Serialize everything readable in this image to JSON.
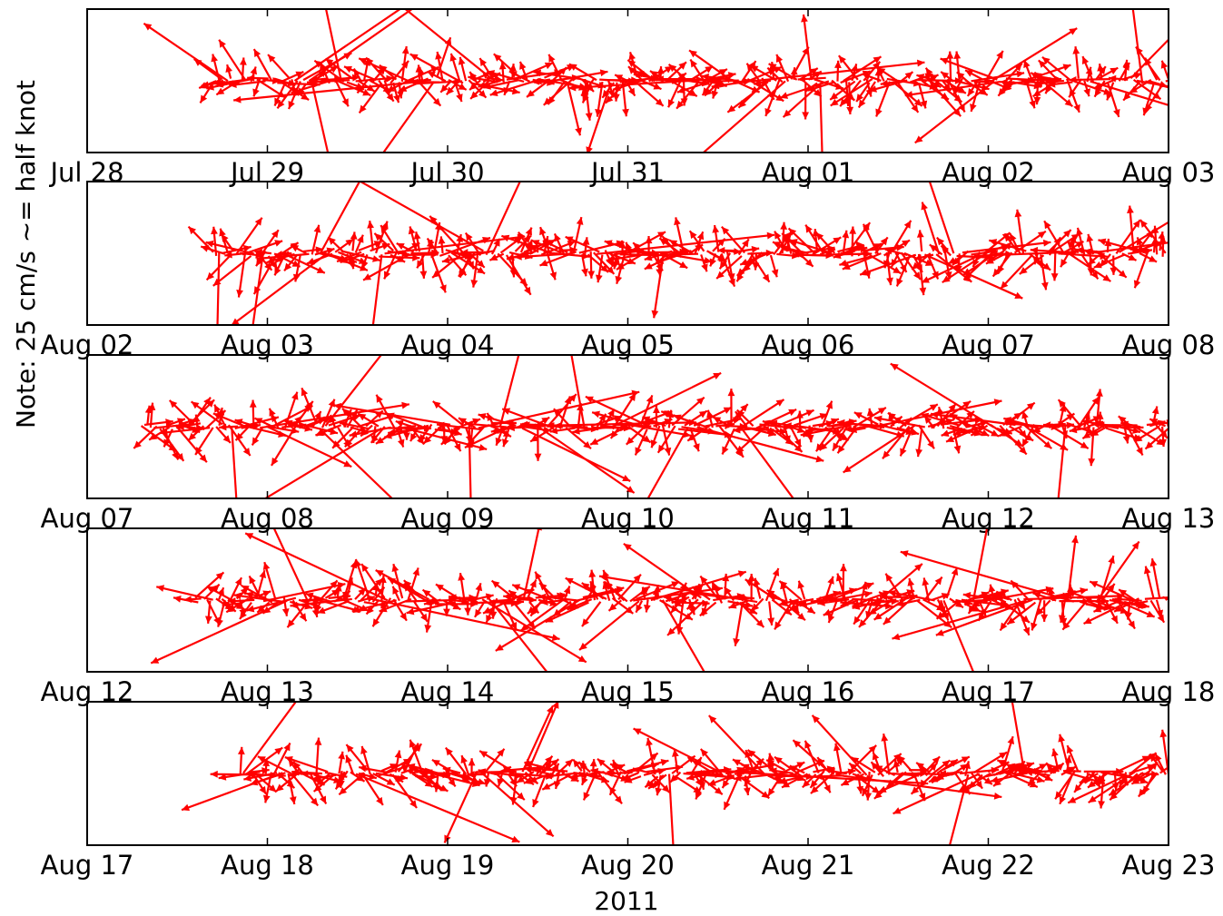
{
  "chart_data": {
    "type": "quiver",
    "ylabel": "Note: 25 cm/s ~= half knot",
    "xlabel": "2011",
    "series_color": "#ff0000",
    "year": 2011,
    "grid": false,
    "panels": [
      {
        "xlim": [
          "Jul 28",
          "Aug 03"
        ],
        "tick_labels": [
          "Jul 28",
          "Jul 29",
          "Jul 30",
          "Jul 31",
          "Aug 01",
          "Aug 02",
          "Aug 03"
        ],
        "data_start_day": 0.7
      },
      {
        "xlim": [
          "Aug 02",
          "Aug 08"
        ],
        "tick_labels": [
          "Aug 02",
          "Aug 03",
          "Aug 04",
          "Aug 05",
          "Aug 06",
          "Aug 07",
          "Aug 08"
        ],
        "data_start_day": 0.7
      },
      {
        "xlim": [
          "Aug 07",
          "Aug 13"
        ],
        "tick_labels": [
          "Aug 07",
          "Aug 08",
          "Aug 09",
          "Aug 10",
          "Aug 11",
          "Aug 12",
          "Aug 13"
        ],
        "data_start_day": 0.3
      },
      {
        "xlim": [
          "Aug 12",
          "Aug 18"
        ],
        "tick_labels": [
          "Aug 12",
          "Aug 13",
          "Aug 14",
          "Aug 15",
          "Aug 16",
          "Aug 17",
          "Aug 18"
        ],
        "data_start_day": 0.6
      },
      {
        "xlim": [
          "Aug 17",
          "Aug 23"
        ],
        "tick_labels": [
          "Aug 17",
          "Aug 18",
          "Aug 19",
          "Aug 20",
          "Aug 21",
          "Aug 22",
          "Aug 23"
        ],
        "data_start_day": 0.85
      }
    ]
  }
}
